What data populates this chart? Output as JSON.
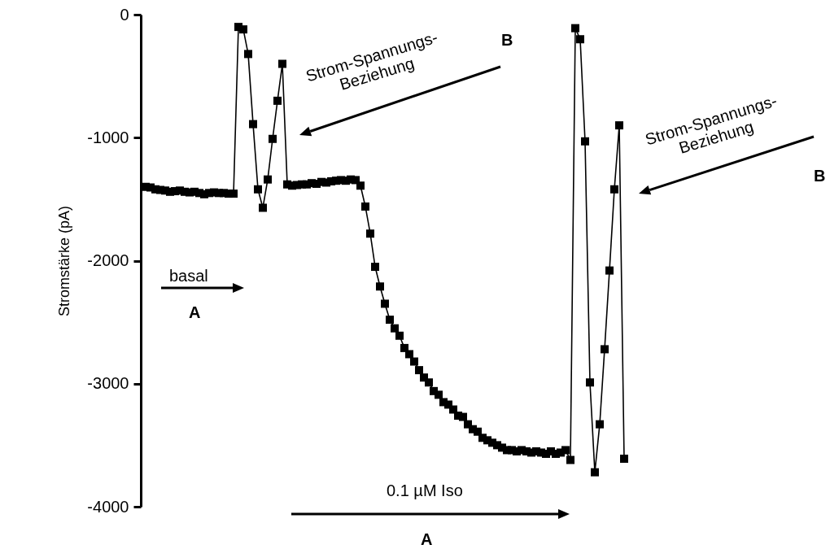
{
  "chart_data": {
    "type": "line",
    "ylabel": "Stromstärke (pA)",
    "ylim": [
      -4000,
      0
    ],
    "yticks": [
      {
        "value": -4000,
        "label": "-4000"
      },
      {
        "value": -3000,
        "label": "-3000"
      },
      {
        "value": -2000,
        "label": "-2000"
      },
      {
        "value": -1000,
        "label": "-1000"
      },
      0
    ],
    "grid": false,
    "marker": "square",
    "line_style": "solid",
    "tick_labels": "y",
    "categories": [
      null,
      null,
      null,
      null,
      null,
      null,
      null,
      null,
      null,
      null,
      null,
      null,
      null,
      null,
      null,
      null,
      null,
      null,
      null,
      null,
      null,
      null,
      null,
      null,
      null,
      null,
      null,
      null,
      null,
      null,
      null,
      null,
      null,
      null,
      null,
      null,
      null,
      null,
      null,
      null,
      null,
      null,
      null,
      null,
      null,
      null,
      null,
      null,
      null,
      null,
      null,
      null,
      null,
      null,
      null,
      null,
      null,
      null,
      null,
      null,
      null,
      null,
      null,
      null,
      null,
      null,
      null,
      null,
      null,
      null,
      null,
      null,
      null,
      null,
      null,
      null,
      null,
      null,
      null,
      null,
      null,
      null,
      null,
      null,
      null,
      null,
      null,
      null,
      null,
      null,
      null,
      null,
      null,
      null,
      null,
      null,
      null,
      null,
      null
    ],
    "series": [
      {
        "color": "#000000",
        "values": [
          -1400,
          -1405,
          -1420,
          -1425,
          -1430,
          -1440,
          -1435,
          -1430,
          -1440,
          -1445,
          -1440,
          -1450,
          -1460,
          -1450,
          -1445,
          -1450,
          -1450,
          -1455,
          -1455,
          -100,
          -120,
          -320,
          -890,
          -1420,
          -1570,
          -1340,
          -1010,
          -700,
          -400,
          -1380,
          -1390,
          -1385,
          -1380,
          -1380,
          -1370,
          -1375,
          -1360,
          -1365,
          -1355,
          -1350,
          -1345,
          -1350,
          -1340,
          -1345,
          -1390,
          -1560,
          -1780,
          -2050,
          -2210,
          -2350,
          -2480,
          -2550,
          -2610,
          -2710,
          -2760,
          -2820,
          -2890,
          -2950,
          -2990,
          -3060,
          -3090,
          -3150,
          -3170,
          -3210,
          -3260,
          -3270,
          -3330,
          -3370,
          -3390,
          -3440,
          -3460,
          -3480,
          -3500,
          -3520,
          -3540,
          -3540,
          -3550,
          -3540,
          -3550,
          -3560,
          -3550,
          -3560,
          -3570,
          -3550,
          -3570,
          -3560,
          -3540,
          -3620,
          -110,
          -200,
          -1030,
          -2990,
          -3720,
          -3330,
          -2720,
          -2080,
          -1420,
          -900,
          -3610
        ]
      }
    ],
    "annotations": [
      "Strom-Spannungs-Beziehung",
      "B",
      "Strom-Spannungs-Beziehung",
      "B",
      "basal",
      "A",
      "0.1 µM Iso",
      "A"
    ]
  }
}
